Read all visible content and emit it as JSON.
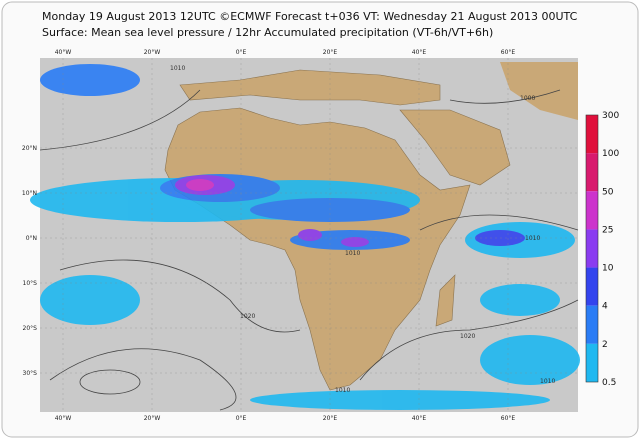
{
  "header": {
    "line1": "Monday 19 August 2013 12UTC ©ECMWF Forecast t+036 VT: Wednesday 21 August 2013 00UTC",
    "line2": "Surface: Mean sea level pressure / 12hr Accumulated precipitation (VT-6h/VT+6h)"
  },
  "map": {
    "lon_labels": [
      "40°W",
      "20°W",
      "0°E",
      "20°E",
      "40°E",
      "60°E"
    ],
    "lat_labels": [
      "20°N",
      "10°N",
      "0°N",
      "10°S",
      "20°S",
      "30°S"
    ],
    "isobar_labels": [
      "1010",
      "1010",
      "1000",
      "1010",
      "1020",
      "1020",
      "1010",
      "1010"
    ]
  },
  "legend": {
    "levels": [
      {
        "label": "300",
        "color": "#e0103c"
      },
      {
        "label": "100",
        "color": "#d81a6e"
      },
      {
        "label": "50",
        "color": "#cc33cc"
      },
      {
        "label": "25",
        "color": "#8a3cf0"
      },
      {
        "label": "10",
        "color": "#3344ee"
      },
      {
        "label": "4",
        "color": "#2a7cf5"
      },
      {
        "label": "2",
        "color": "#1fb8f0"
      },
      {
        "label": "0.5",
        "color": null
      }
    ]
  }
}
